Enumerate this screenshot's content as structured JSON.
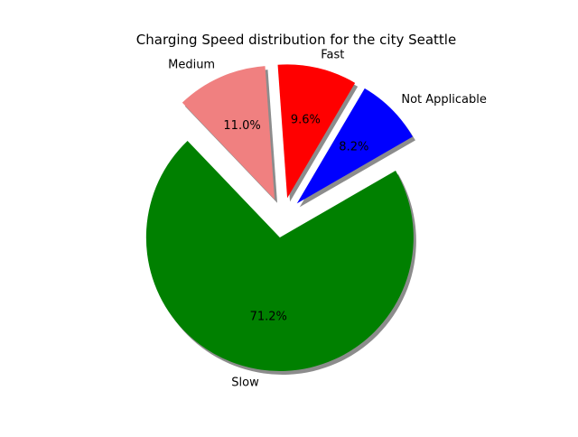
{
  "chart_data": {
    "type": "pie",
    "title": "Charging Speed distribution for the city Seattle",
    "categories": [
      "Not Applicable",
      "Fast",
      "Medium",
      "Slow"
    ],
    "values": [
      8.2,
      9.6,
      11.0,
      71.2
    ],
    "percent_labels": [
      "8.2%",
      "9.6%",
      "11.0%",
      "71.2%"
    ],
    "colors": [
      "#0000ff",
      "#ff0000",
      "#f08080",
      "#008000"
    ],
    "exploded": true,
    "shadow": true,
    "start_angle_deg": 30,
    "direction": "counterclockwise"
  }
}
